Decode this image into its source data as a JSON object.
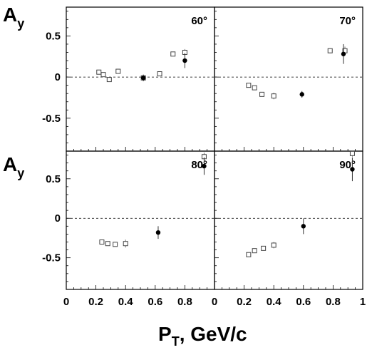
{
  "figure": {
    "ylabel_main": "A",
    "ylabel_sub": "y",
    "xlabel_main": "P",
    "xlabel_sub": "T",
    "xlabel_rest": ", GeV/c"
  },
  "chart_data": [
    {
      "type": "scatter",
      "panel": "60°",
      "ylim": [
        -0.9,
        0.85
      ],
      "xlim": [
        0,
        1
      ],
      "x_ticks": [],
      "y_ticks": [
        "0.5",
        "0",
        "-0.5"
      ],
      "series": [
        {
          "marker": "open-square",
          "points": [
            {
              "x": 0.22,
              "y": 0.06,
              "err": 0.02
            },
            {
              "x": 0.25,
              "y": 0.03,
              "err": 0.02
            },
            {
              "x": 0.29,
              "y": -0.03,
              "err": 0.02
            },
            {
              "x": 0.35,
              "y": 0.07,
              "err": 0.03
            },
            {
              "x": 0.52,
              "y": -0.01,
              "err": 0.03
            },
            {
              "x": 0.63,
              "y": 0.04,
              "err": 0.03
            },
            {
              "x": 0.72,
              "y": 0.28,
              "err": 0.02
            },
            {
              "x": 0.8,
              "y": 0.3,
              "err": 0.04
            }
          ]
        },
        {
          "marker": "filled-circle",
          "points": [
            {
              "x": 0.52,
              "y": -0.01,
              "err": 0.04
            },
            {
              "x": 0.8,
              "y": 0.2,
              "err": 0.09
            }
          ]
        }
      ]
    },
    {
      "type": "scatter",
      "panel": "70°",
      "ylim": [
        -0.9,
        0.85
      ],
      "xlim": [
        0,
        1
      ],
      "x_ticks": [],
      "y_ticks": [],
      "series": [
        {
          "marker": "open-square",
          "points": [
            {
              "x": 0.23,
              "y": -0.1,
              "err": 0.02
            },
            {
              "x": 0.27,
              "y": -0.13,
              "err": 0.02
            },
            {
              "x": 0.32,
              "y": -0.21,
              "err": 0.02
            },
            {
              "x": 0.4,
              "y": -0.23,
              "err": 0.04
            },
            {
              "x": 0.78,
              "y": 0.32,
              "err": 0.03
            },
            {
              "x": 0.88,
              "y": 0.32,
              "err": 0.05
            }
          ]
        },
        {
          "marker": "filled-circle",
          "points": [
            {
              "x": 0.59,
              "y": -0.21,
              "err": 0.04
            },
            {
              "x": 0.87,
              "y": 0.28,
              "err": 0.12
            }
          ]
        }
      ]
    },
    {
      "type": "scatter",
      "panel": "80°",
      "ylim": [
        -0.9,
        0.85
      ],
      "xlim": [
        0,
        1
      ],
      "x_ticks": [
        "0",
        "0.2",
        "0.4",
        "0.6",
        "0.8"
      ],
      "y_ticks": [
        "0.5",
        "0",
        "-0.5"
      ],
      "series": [
        {
          "marker": "open-square",
          "points": [
            {
              "x": 0.24,
              "y": -0.3,
              "err": 0.02
            },
            {
              "x": 0.28,
              "y": -0.32,
              "err": 0.02
            },
            {
              "x": 0.33,
              "y": -0.33,
              "err": 0.02
            },
            {
              "x": 0.4,
              "y": -0.32,
              "err": 0.05
            },
            {
              "x": 0.93,
              "y": 0.78,
              "err": 0.05
            }
          ]
        },
        {
          "marker": "filled-circle",
          "points": [
            {
              "x": 0.62,
              "y": -0.18,
              "err": 0.08
            },
            {
              "x": 0.93,
              "y": 0.66,
              "err": 0.11
            }
          ]
        }
      ]
    },
    {
      "type": "scatter",
      "panel": "90°",
      "ylim": [
        -0.9,
        0.85
      ],
      "xlim": [
        0,
        1
      ],
      "x_ticks": [
        "0",
        "0.2",
        "0.4",
        "0.6",
        "0.8",
        "1"
      ],
      "y_ticks": [],
      "series": [
        {
          "marker": "open-square",
          "points": [
            {
              "x": 0.23,
              "y": -0.46,
              "err": 0.02
            },
            {
              "x": 0.27,
              "y": -0.41,
              "err": 0.03
            },
            {
              "x": 0.33,
              "y": -0.38,
              "err": 0.03
            },
            {
              "x": 0.4,
              "y": -0.34,
              "err": 0.04
            },
            {
              "x": 0.93,
              "y": 0.82,
              "err": 0.04
            }
          ]
        },
        {
          "marker": "filled-circle",
          "points": [
            {
              "x": 0.6,
              "y": -0.1,
              "err": 0.1
            },
            {
              "x": 0.93,
              "y": 0.62,
              "err": 0.15
            }
          ]
        }
      ]
    }
  ]
}
